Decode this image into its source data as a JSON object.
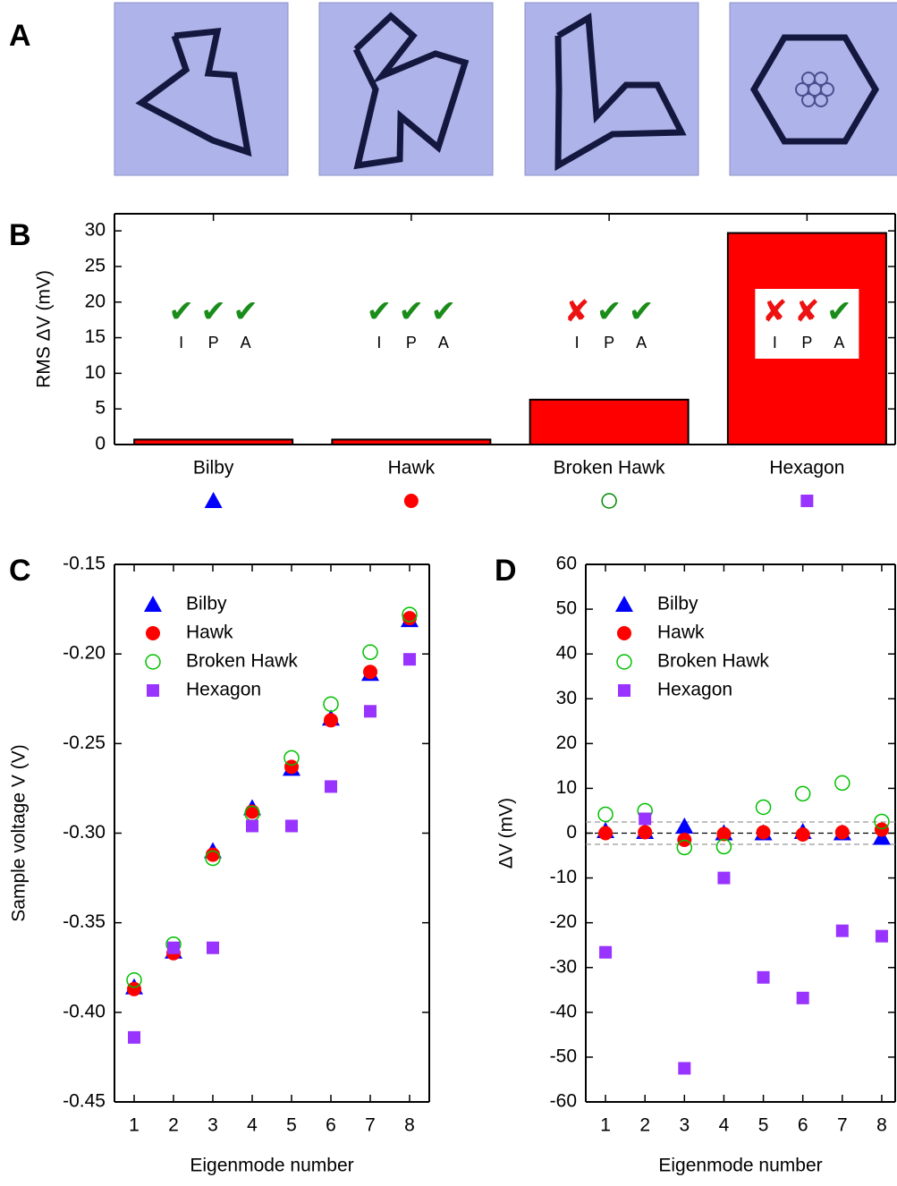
{
  "panel_a": {
    "label": "A"
  },
  "chart_data": [
    {
      "type": "bar",
      "panel": "B",
      "ylabel": "RMS ΔV (mV)",
      "categories": [
        "Bilby",
        "Hawk",
        "Broken Hawk",
        "Hexagon"
      ],
      "values": [
        0.7,
        0.7,
        6.3,
        29.7
      ],
      "color": "#ff0000",
      "ylim": [
        0,
        32.4
      ],
      "yticks": [
        0,
        5,
        10,
        15,
        20,
        25,
        30
      ],
      "criteria": [
        "I",
        "P",
        "A"
      ],
      "pass_symbol": "✔",
      "fail_symbol": "✘",
      "pass_color": "#1a8c1a",
      "fail_color": "#ee1111",
      "checks": [
        [
          true,
          true,
          true
        ],
        [
          true,
          true,
          true
        ],
        [
          false,
          true,
          true
        ],
        [
          false,
          false,
          true
        ]
      ],
      "markers": [
        {
          "shape": "triangle",
          "color": "#0000ff"
        },
        {
          "shape": "circle",
          "color": "#ff0000"
        },
        {
          "shape": "open-circle",
          "color": "#008a00"
        },
        {
          "shape": "square",
          "color": "#9933ff"
        }
      ]
    },
    {
      "type": "scatter",
      "panel": "C",
      "xlabel": "Eigenmode number",
      "ylabel": "Sample voltage V (V)",
      "x": [
        1,
        2,
        3,
        4,
        5,
        6,
        7,
        8
      ],
      "xlim": [
        0.5,
        8.5
      ],
      "xticks": [
        1,
        2,
        3,
        4,
        5,
        6,
        7,
        8
      ],
      "ylim": [
        -0.45,
        -0.15
      ],
      "yticks": [
        -0.45,
        {
          "value": -0.4,
          "label": "-0.40"
        },
        -0.35,
        {
          "value": -0.3,
          "label": "-0.30"
        },
        -0.25,
        {
          "value": -0.2,
          "label": "-0.20"
        },
        -0.15
      ],
      "legend": "upper left",
      "series": [
        {
          "name": "Bilby",
          "marker": "triangle",
          "color": "#0000ff",
          "values": [
            -0.386,
            -0.366,
            -0.31,
            -0.286,
            -0.264,
            -0.236,
            -0.211,
            -0.181
          ]
        },
        {
          "name": "Hawk",
          "marker": "circle",
          "color": "#ff0000",
          "values": [
            -0.387,
            -0.367,
            -0.312,
            -0.288,
            -0.263,
            -0.237,
            -0.21,
            -0.18
          ]
        },
        {
          "name": "Broken Hawk",
          "marker": "open-circle",
          "color": "#00c000",
          "values": [
            -0.382,
            -0.362,
            -0.314,
            -0.289,
            -0.258,
            -0.228,
            -0.199,
            -0.178
          ]
        },
        {
          "name": "Hexagon",
          "marker": "square",
          "color": "#9933ff",
          "values": [
            -0.414,
            -0.364,
            -0.364,
            -0.296,
            -0.296,
            -0.274,
            -0.232,
            -0.203
          ]
        }
      ]
    },
    {
      "type": "scatter",
      "panel": "D",
      "xlabel": "Eigenmode number",
      "ylabel": "ΔV (mV)",
      "x": [
        1,
        2,
        3,
        4,
        5,
        6,
        7,
        8
      ],
      "xlim": [
        0.5,
        8.5
      ],
      "xticks": [
        1,
        2,
        3,
        4,
        5,
        6,
        7,
        8
      ],
      "ylim": [
        -60,
        60
      ],
      "yticks": [
        -60,
        -50,
        -40,
        -30,
        -20,
        -10,
        0,
        10,
        20,
        30,
        40,
        50,
        60
      ],
      "legend": "upper left",
      "hlines": [
        {
          "value": 0,
          "color": "#000000"
        },
        {
          "value": 2.5,
          "color": "#999999"
        },
        {
          "value": -2.5,
          "color": "#999999"
        }
      ],
      "series": [
        {
          "name": "Bilby",
          "marker": "triangle",
          "color": "#0000ff",
          "values": [
            0.5,
            0.3,
            1.5,
            0,
            0,
            0.3,
            0,
            -1
          ]
        },
        {
          "name": "Hawk",
          "marker": "circle",
          "color": "#ff0000",
          "values": [
            0,
            0.2,
            -1.5,
            -0.2,
            0.2,
            -0.3,
            0.2,
            0.8
          ]
        },
        {
          "name": "Broken Hawk",
          "marker": "open-circle",
          "color": "#00c000",
          "values": [
            4.2,
            5.0,
            -3.2,
            -3.0,
            5.8,
            8.8,
            11.2,
            2.6
          ]
        },
        {
          "name": "Hexagon",
          "marker": "square",
          "color": "#9933ff",
          "values": [
            -26.6,
            3.2,
            -52.5,
            -10.0,
            -32.2,
            -36.8,
            -21.8,
            -23.0
          ]
        }
      ]
    }
  ]
}
